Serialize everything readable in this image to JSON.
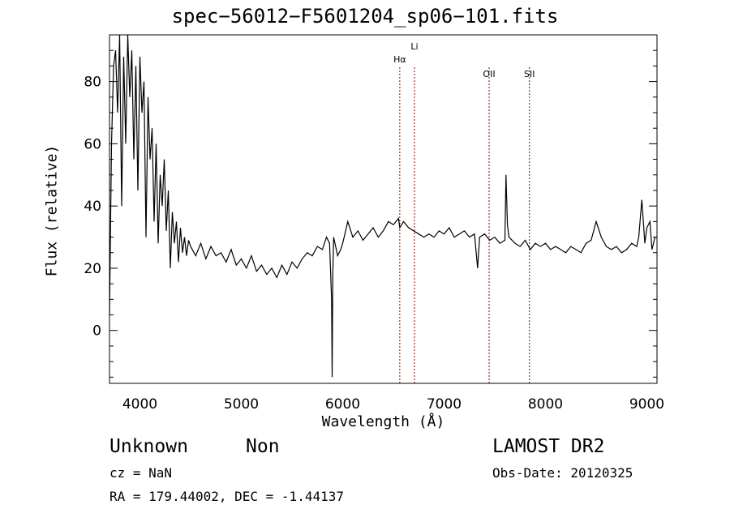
{
  "chart_data": {
    "type": "line",
    "title": "spec−56012−F5601204_sp06−101.fits",
    "xlabel": "Wavelength (Å)",
    "ylabel": "Flux (relative)",
    "xlim": [
      3700,
      9100
    ],
    "ylim": [
      -17,
      95
    ],
    "xticks": [
      4000,
      5000,
      6000,
      7000,
      8000,
      9000
    ],
    "yticks": [
      0,
      20,
      40,
      60,
      80
    ],
    "grid": false,
    "line_color": "#000000",
    "marker_color": "#8b0000",
    "lines": [
      {
        "label": "Hα",
        "x": 6563,
        "label_row": 2
      },
      {
        "label": "Li",
        "x": 6708,
        "label_row": 1
      },
      {
        "label": "OII",
        "x": 7444,
        "label_row": 3
      },
      {
        "label": "SII",
        "x": 7842,
        "label_row": 3
      }
    ],
    "series": [
      {
        "x": [
          3700,
          3720,
          3740,
          3760,
          3780,
          3800,
          3820,
          3840,
          3860,
          3880,
          3900,
          3920,
          3940,
          3960,
          3980,
          4000,
          4020,
          4040,
          4060,
          4080,
          4100,
          4120,
          4140,
          4160,
          4180,
          4200,
          4220,
          4240,
          4260,
          4280,
          4300,
          4320,
          4340,
          4360,
          4380,
          4400,
          4420,
          4440,
          4460,
          4480,
          4500,
          4550,
          4600,
          4650,
          4700,
          4750,
          4800,
          4850,
          4900,
          4950,
          5000,
          5050,
          5100,
          5150,
          5200,
          5250,
          5300,
          5350,
          5400,
          5450,
          5500,
          5550,
          5600,
          5650,
          5700,
          5750,
          5800,
          5840,
          5870,
          5890,
          5896,
          5902,
          5910,
          5930,
          5950,
          5980,
          6000,
          6050,
          6100,
          6150,
          6200,
          6250,
          6300,
          6350,
          6400,
          6450,
          6500,
          6550,
          6563,
          6600,
          6650,
          6700,
          6750,
          6800,
          6850,
          6900,
          6950,
          7000,
          7050,
          7100,
          7150,
          7200,
          7250,
          7300,
          7330,
          7350,
          7400,
          7450,
          7500,
          7550,
          7600,
          7610,
          7625,
          7640,
          7700,
          7750,
          7800,
          7850,
          7900,
          7950,
          8000,
          8050,
          8100,
          8150,
          8200,
          8250,
          8300,
          8350,
          8400,
          8450,
          8500,
          8550,
          8600,
          8650,
          8700,
          8750,
          8800,
          8850,
          8900,
          8920,
          8950,
          8980,
          9000,
          9030,
          9050,
          9080,
          9100
        ],
        "y": [
          5,
          60,
          85,
          90,
          70,
          95,
          40,
          88,
          60,
          95,
          75,
          90,
          55,
          85,
          45,
          88,
          70,
          80,
          30,
          75,
          55,
          65,
          35,
          60,
          28,
          50,
          40,
          55,
          32,
          45,
          20,
          38,
          28,
          35,
          22,
          33,
          25,
          30,
          24,
          29,
          27,
          24,
          28,
          23,
          27,
          24,
          25,
          22,
          26,
          21,
          23,
          20,
          24,
          19,
          21,
          18,
          20,
          17,
          21,
          18,
          22,
          20,
          23,
          25,
          24,
          27,
          26,
          30,
          28,
          10,
          -15,
          18,
          30,
          27,
          24,
          26,
          28,
          35,
          30,
          32,
          29,
          31,
          33,
          30,
          32,
          35,
          34,
          36,
          33,
          35,
          33,
          32,
          31,
          30,
          31,
          30,
          32,
          31,
          33,
          30,
          31,
          32,
          30,
          31,
          20,
          30,
          31,
          29,
          30,
          28,
          29,
          50,
          34,
          30,
          28,
          27,
          29,
          26,
          28,
          27,
          28,
          26,
          27,
          26,
          25,
          27,
          26,
          25,
          28,
          29,
          35,
          30,
          27,
          26,
          27,
          25,
          26,
          28,
          27,
          30,
          42,
          28,
          33,
          35,
          26,
          30,
          30
        ]
      }
    ]
  },
  "info": {
    "obj_class": "Unknown",
    "obj_subclass": "Non",
    "survey": "LAMOST DR2",
    "cz": "cz = NaN",
    "obs_date": "Obs-Date: 20120325",
    "coords": "RA = 179.44002, DEC =  -1.44137"
  }
}
